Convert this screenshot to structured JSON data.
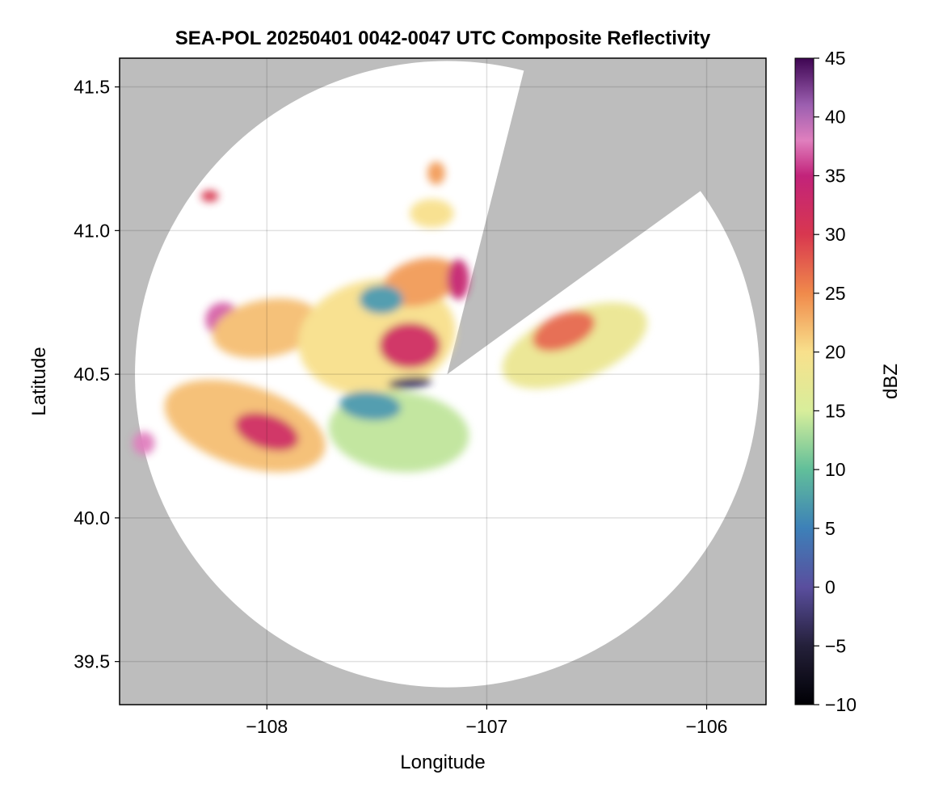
{
  "chart_data": {
    "type": "heatmap",
    "title": "SEA-POL 20250401 0042-0047 UTC Composite Reflectivity",
    "xlabel": "Longitude",
    "ylabel": "Latitude",
    "xlim": [
      -108.67,
      -105.73
    ],
    "ylim": [
      39.35,
      41.6
    ],
    "xticks": [
      -108,
      -107,
      -106
    ],
    "xtick_labels": [
      "−108",
      "−107",
      "−106"
    ],
    "yticks": [
      39.5,
      40.0,
      40.5,
      41.0,
      41.5
    ],
    "ytick_labels": [
      "39.5",
      "40.0",
      "40.5",
      "41.0",
      "41.5"
    ],
    "grid": true,
    "background_color": "#bdbdbd",
    "radar": {
      "center_lon": -107.18,
      "center_lat": 40.5,
      "range_deg_lon": 1.42,
      "range_deg_lat": 1.09,
      "blocked_sectors": [
        {
          "lon1": -106.84,
          "lat1": 41.53,
          "lon2": -106.06,
          "lat2": 41.12
        }
      ]
    },
    "colorbar": {
      "label": "dBZ",
      "colormap": "Spectral_r (reversed)",
      "range": [
        -10,
        45
      ],
      "ticks": [
        -10,
        -5,
        0,
        5,
        10,
        15,
        20,
        25,
        30,
        35,
        40,
        45
      ],
      "tick_labels": [
        "−10",
        "−5",
        "0",
        "5",
        "10",
        "15",
        "20",
        "25",
        "30",
        "35",
        "40",
        "45"
      ]
    },
    "echo_regions": [
      {
        "name": "western band",
        "lon": -108.1,
        "lat": 40.32,
        "rx": 0.38,
        "ry": 0.14,
        "rot": 18,
        "dbz": 22
      },
      {
        "name": "western band core",
        "lon": -108.0,
        "lat": 40.3,
        "rx": 0.15,
        "ry": 0.06,
        "rot": 18,
        "dbz": 32
      },
      {
        "name": "far west cell",
        "lon": -108.56,
        "lat": 40.26,
        "rx": 0.05,
        "ry": 0.04,
        "rot": 0,
        "dbz": 38
      },
      {
        "name": "northwest cell",
        "lon": -108.2,
        "lat": 40.69,
        "rx": 0.08,
        "ry": 0.06,
        "rot": 0,
        "dbz": 37
      },
      {
        "name": "northwest area",
        "lon": -108.0,
        "lat": 40.66,
        "rx": 0.25,
        "ry": 0.1,
        "rot": -10,
        "dbz": 22
      },
      {
        "name": "central mass",
        "lon": -107.5,
        "lat": 40.63,
        "rx": 0.36,
        "ry": 0.2,
        "rot": -10,
        "dbz": 20
      },
      {
        "name": "central core",
        "lon": -107.35,
        "lat": 40.6,
        "rx": 0.14,
        "ry": 0.08,
        "rot": 0,
        "dbz": 32
      },
      {
        "name": "north central",
        "lon": -107.3,
        "lat": 40.82,
        "rx": 0.18,
        "ry": 0.08,
        "rot": -15,
        "dbz": 24
      },
      {
        "name": "northeast spur",
        "lon": -107.13,
        "lat": 40.83,
        "rx": 0.05,
        "ry": 0.07,
        "rot": 0,
        "dbz": 34
      },
      {
        "name": "southern band",
        "lon": -107.4,
        "lat": 40.3,
        "rx": 0.32,
        "ry": 0.14,
        "rot": 5,
        "dbz": 14
      },
      {
        "name": "clutter patch 1",
        "lon": -107.48,
        "lat": 40.76,
        "rx": 0.1,
        "ry": 0.05,
        "rot": 0,
        "dbz": 7
      },
      {
        "name": "clutter patch 2",
        "lon": -107.53,
        "lat": 40.39,
        "rx": 0.14,
        "ry": 0.05,
        "rot": 5,
        "dbz": 7
      },
      {
        "name": "east sector band",
        "lon": -106.6,
        "lat": 40.6,
        "rx": 0.35,
        "ry": 0.12,
        "rot": -22,
        "dbz": 18
      },
      {
        "name": "east sector core",
        "lon": -106.65,
        "lat": 40.65,
        "rx": 0.15,
        "ry": 0.06,
        "rot": -22,
        "dbz": 27
      },
      {
        "name": "north cell",
        "lon": -107.25,
        "lat": 41.06,
        "rx": 0.1,
        "ry": 0.05,
        "rot": 0,
        "dbz": 20
      },
      {
        "name": "north small cell",
        "lon": -107.23,
        "lat": 41.2,
        "rx": 0.04,
        "ry": 0.04,
        "rot": 0,
        "dbz": 24
      },
      {
        "name": "far northwest cell",
        "lon": -108.26,
        "lat": 41.12,
        "rx": 0.04,
        "ry": 0.02,
        "rot": 0,
        "dbz": 30
      },
      {
        "name": "near radar weak echo",
        "lon": -107.35,
        "lat": 40.47,
        "rx": 0.1,
        "ry": 0.02,
        "rot": -5,
        "dbz": -3
      }
    ]
  }
}
